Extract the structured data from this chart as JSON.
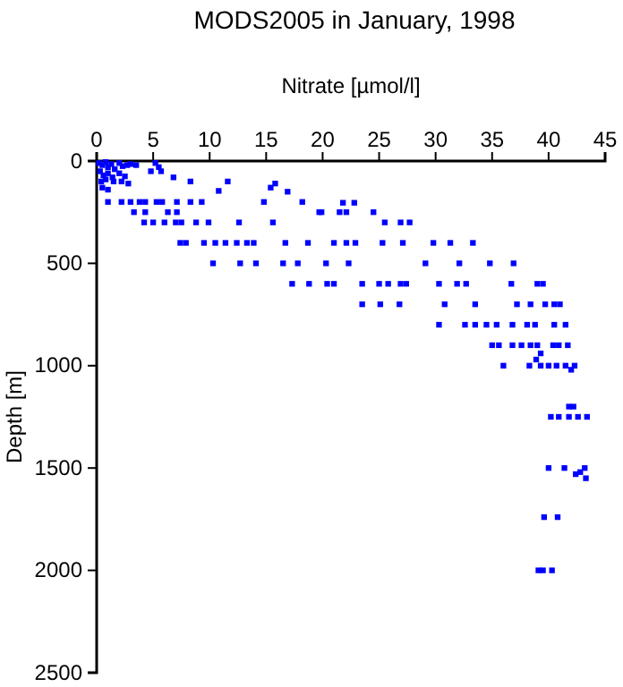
{
  "chart_data": {
    "type": "scatter",
    "title": "MODS2005 in January, 1998",
    "xlabel": "Nitrate [µmol/l]",
    "ylabel": "Depth [m]",
    "marker": "square",
    "grid": false,
    "xlim": [
      0,
      45
    ],
    "xticks": [
      0,
      5,
      10,
      15,
      20,
      25,
      30,
      35,
      40,
      45
    ],
    "ylim": [
      2500,
      0
    ],
    "yticks": [
      0,
      500,
      1000,
      1500,
      2000,
      2500
    ],
    "series": [
      {
        "color": "#0000ff",
        "x": [
          0.2,
          0.5,
          0.8,
          1,
          1.3,
          1.6,
          2,
          2.3,
          2.7,
          3,
          3.5,
          0.3,
          0.6,
          1,
          1.4,
          2,
          2.5,
          0.4,
          0.8,
          1.5,
          2.2,
          2.8,
          0.5,
          1,
          5.2,
          5.5,
          5.7,
          4.8,
          6.8,
          8.3,
          11.6,
          10.8,
          15.4,
          15.8,
          16.9,
          1,
          2.2,
          3,
          3.8,
          4.3,
          5.3,
          5.8,
          7.1,
          8.3,
          9.3,
          14.8,
          18.2,
          21.8,
          22.8,
          3.3,
          4.3,
          6.3,
          7.1,
          19.7,
          19.9,
          21.5,
          22.1,
          24.5,
          4.2,
          5,
          6,
          7,
          7.5,
          8.8,
          9.9,
          12.6,
          15.6,
          25.5,
          26.9,
          27.7,
          7.4,
          7.9,
          9.5,
          10.5,
          11.4,
          12.4,
          13.3,
          13.9,
          16.7,
          18.7,
          21,
          22.1,
          22.9,
          25.3,
          27.1,
          29.8,
          31.3,
          33.3,
          10.3,
          12.7,
          14.1,
          16.5,
          17.8,
          20.3,
          22.3,
          29.1,
          32.1,
          34.8,
          36.9,
          17.3,
          18.8,
          20.4,
          21,
          23.5,
          25,
          25.8,
          26.9,
          27.4,
          30.3,
          31.9,
          32.7,
          36.7,
          39,
          39.5,
          23.5,
          25.1,
          26.8,
          30.8,
          33.5,
          37.2,
          38.4,
          39.7,
          40.5,
          41,
          30.3,
          32.6,
          33.5,
          34.5,
          35.4,
          36.8,
          38.1,
          38.8,
          40.5,
          41.5,
          35,
          35.6,
          36.8,
          37.6,
          38.4,
          39,
          40.4,
          40.9,
          41.7,
          39.3,
          38.9,
          36,
          38.3,
          39.3,
          40,
          40.7,
          41.5,
          42.3,
          42,
          41.8,
          42.2,
          40.2,
          40.9,
          41.8,
          42.6,
          43.4,
          40,
          41.4,
          43.2,
          42.4,
          43.3,
          42.8,
          39.6,
          40.8,
          39.1,
          39.5,
          40.3
        ],
        "values": [
          10,
          20,
          5,
          30,
          15,
          40,
          10,
          25,
          20,
          15,
          20,
          50,
          70,
          60,
          80,
          60,
          75,
          100,
          90,
          100,
          100,
          110,
          130,
          140,
          10,
          30,
          50,
          50,
          80,
          100,
          100,
          146,
          130,
          110,
          150,
          200,
          200,
          200,
          200,
          200,
          200,
          200,
          200,
          200,
          200,
          200,
          200,
          204,
          204,
          250,
          250,
          250,
          250,
          250,
          250,
          250,
          250,
          250,
          300,
          300,
          300,
          300,
          300,
          300,
          300,
          300,
          300,
          300,
          300,
          300,
          400,
          400,
          400,
          400,
          400,
          400,
          400,
          400,
          400,
          400,
          400,
          400,
          400,
          400,
          400,
          400,
          400,
          400,
          500,
          500,
          500,
          500,
          500,
          500,
          500,
          500,
          500,
          500,
          500,
          600,
          600,
          600,
          600,
          600,
          600,
          600,
          600,
          600,
          600,
          600,
          600,
          600,
          600,
          600,
          700,
          700,
          700,
          700,
          700,
          700,
          700,
          700,
          700,
          700,
          800,
          800,
          800,
          800,
          800,
          800,
          800,
          800,
          800,
          800,
          900,
          900,
          900,
          900,
          900,
          900,
          900,
          900,
          900,
          940,
          970,
          1000,
          1000,
          1000,
          1000,
          1000,
          1000,
          1000,
          1020,
          1200,
          1200,
          1250,
          1250,
          1250,
          1250,
          1250,
          1500,
          1500,
          1500,
          1530,
          1550,
          1520,
          1740,
          1740,
          2000,
          2000,
          2000
        ]
      }
    ]
  }
}
